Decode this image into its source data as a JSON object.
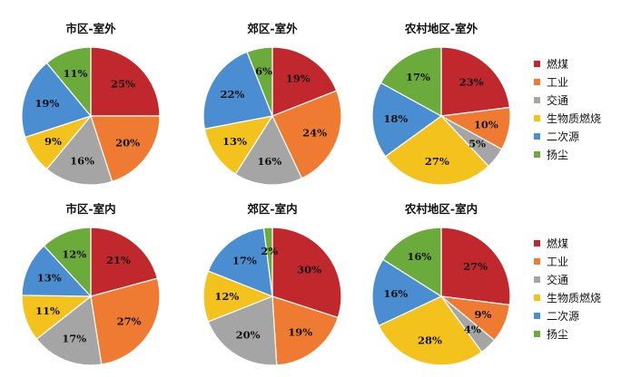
{
  "chart_data": [
    {
      "type": "pie",
      "title": "市区-室外",
      "categories": [
        "燃煤",
        "工业",
        "交通",
        "生物质燃烧",
        "二次源",
        "扬尘"
      ],
      "values": [
        25,
        20,
        16,
        9,
        19,
        11
      ],
      "labels": [
        "25%",
        "20%",
        "16%",
        "9%",
        "19%",
        "11%"
      ]
    },
    {
      "type": "pie",
      "title": "郊区-室外",
      "categories": [
        "燃煤",
        "工业",
        "交通",
        "生物质燃烧",
        "二次源",
        "扬尘"
      ],
      "values": [
        19,
        24,
        16,
        13,
        22,
        6
      ],
      "labels": [
        "19%",
        "24%",
        "16%",
        "13%",
        "22%",
        "6%"
      ]
    },
    {
      "type": "pie",
      "title": "农村地区-室外",
      "categories": [
        "燃煤",
        "工业",
        "交通",
        "生物质燃烧",
        "二次源",
        "扬尘"
      ],
      "values": [
        23,
        10,
        5,
        27,
        18,
        17
      ],
      "labels": [
        "23%",
        "10%",
        "5%",
        "27%",
        "18%",
        "17%"
      ]
    },
    {
      "type": "pie",
      "title": "市区-室内",
      "categories": [
        "燃煤",
        "工业",
        "交通",
        "生物质燃烧",
        "二次源",
        "扬尘"
      ],
      "values": [
        21,
        27,
        17,
        11,
        13,
        12
      ],
      "labels": [
        "21%",
        "27%",
        "17%",
        "11%",
        "13%",
        "12%"
      ]
    },
    {
      "type": "pie",
      "title": "郊区-室内",
      "categories": [
        "燃煤",
        "工业",
        "交通",
        "生物质燃烧",
        "二次源",
        "扬尘"
      ],
      "values": [
        30,
        19,
        20,
        12,
        17,
        2
      ],
      "labels": [
        "30%",
        "19%",
        "20%",
        "12%",
        "17%",
        "2%"
      ]
    },
    {
      "type": "pie",
      "title": "农村地区-室内",
      "categories": [
        "燃煤",
        "工业",
        "交通",
        "生物质燃烧",
        "二次源",
        "扬尘"
      ],
      "values": [
        27,
        9,
        4,
        28,
        16,
        16
      ],
      "labels": [
        "27%",
        "9%",
        "4%",
        "28%",
        "16%",
        "16%"
      ]
    }
  ],
  "legends": [
    [
      "燃煤",
      "工业",
      "交通",
      "生物质燃烧",
      "二次源",
      "扬尘"
    ],
    [
      "燃煤",
      "工业",
      "交通",
      "生物质燃烧",
      "二次源",
      "扬尘"
    ]
  ],
  "colors": [
    "#c0282d",
    "#ee7b31",
    "#a5a5a5",
    "#f4c21c",
    "#4a8dd0",
    "#6bab3b"
  ],
  "legend_placement": "right"
}
